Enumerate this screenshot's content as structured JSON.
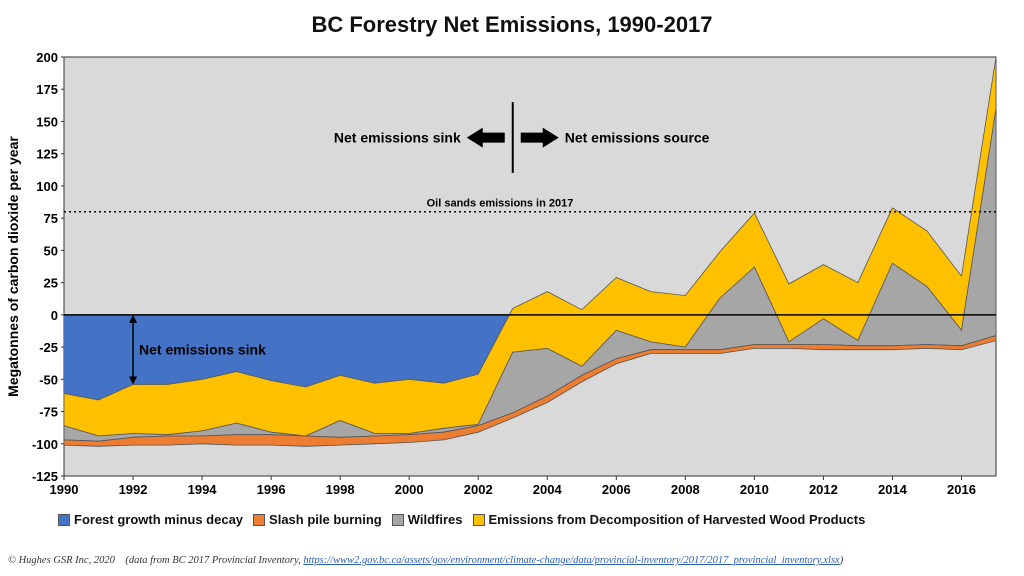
{
  "chart_data": {
    "type": "area",
    "title": "BC Forestry Net Emissions, 1990-2017",
    "ylabel": "Megatonnes of carbon dioxide per year",
    "xlabel": "",
    "x": [
      1990,
      1991,
      1992,
      1993,
      1994,
      1995,
      1996,
      1997,
      1998,
      1999,
      2000,
      2001,
      2002,
      2003,
      2004,
      2005,
      2006,
      2007,
      2008,
      2009,
      2010,
      2011,
      2012,
      2013,
      2014,
      2015,
      2016,
      2017
    ],
    "xticks": [
      "1990",
      "1992",
      "1994",
      "1996",
      "1998",
      "2000",
      "2002",
      "2004",
      "2006",
      "2008",
      "2010",
      "2012",
      "2014",
      "2016"
    ],
    "yticks": [
      "200",
      "175",
      "150",
      "125",
      "100",
      "75",
      "50",
      "25",
      "0",
      "-25",
      "-50",
      "-75",
      "-100",
      "-125"
    ],
    "ylim": [
      -125,
      200
    ],
    "xlim": [
      1990,
      2017
    ],
    "legend_position": "bottom",
    "grid": false,
    "plot_background": "#d9d9d9",
    "series": [
      {
        "name": "Forest growth minus decay",
        "color": "#4472c4",
        "role": "net_line",
        "values": [
          -61,
          -66,
          -54,
          -54,
          -50,
          -44,
          -51,
          -56,
          -47,
          -53,
          -50,
          -53,
          -46,
          5,
          18,
          4,
          29,
          18,
          15,
          49,
          79,
          24,
          39,
          25,
          83,
          65,
          30,
          200
        ]
      },
      {
        "name": "Slash pile burning",
        "color": "#ed7d31",
        "bottom": [
          -101,
          -102,
          -101,
          -101,
          -100,
          -101,
          -101,
          -102,
          -101,
          -100,
          -99,
          -97,
          -91,
          -80,
          -68,
          -52,
          -38,
          -30,
          -30,
          -30,
          -26,
          -26,
          -27,
          -27,
          -27,
          -26,
          -27,
          -20
        ],
        "top": [
          -97,
          -98,
          -95,
          -94,
          -94,
          -93,
          -93,
          -94,
          -95,
          -94,
          -93,
          -91,
          -86,
          -76,
          -63,
          -47,
          -34,
          -27,
          -27,
          -27,
          -23,
          -23,
          -23,
          -24,
          -24,
          -23,
          -24,
          -16
        ]
      },
      {
        "name": "Wildfires",
        "color": "#a6a6a6",
        "top": [
          -86,
          -94,
          -92,
          -93,
          -90,
          -84,
          -91,
          -94,
          -82,
          -92,
          -92,
          -88,
          -85,
          -29,
          -26,
          -40,
          -12,
          -21,
          -25,
          13,
          37,
          -21,
          -3,
          -20,
          40,
          22,
          -12,
          160
        ]
      },
      {
        "name": "Emissions from Decomposition of Harvested Wood Products",
        "color": "#ffc000",
        "top": [
          -61,
          -66,
          -54,
          -54,
          -50,
          -44,
          -51,
          -56,
          -47,
          -53,
          -50,
          -53,
          -46,
          5,
          18,
          4,
          29,
          18,
          15,
          49,
          79,
          24,
          39,
          25,
          83,
          65,
          30,
          200
        ]
      }
    ],
    "annotations": {
      "oil_sands": {
        "label": "Oil sands emissions in 2017",
        "y": 80
      },
      "sink_arrow_label": "Net emissions sink",
      "source_arrow_label": "Net emissions source",
      "sink_bracket_label": "Net emissions sink",
      "divider_x": 2003.0,
      "sink_bracket_x": 1992,
      "sink_bracket_range": [
        0,
        -54
      ]
    }
  },
  "legend": [
    {
      "label": "Forest growth minus decay",
      "color": "#4472c4"
    },
    {
      "label": "Slash pile burning",
      "color": "#ed7d31"
    },
    {
      "label": "Wildfires",
      "color": "#a6a6a6"
    },
    {
      "label": "Emissions from Decomposition of Harvested Wood Products",
      "color": "#ffc000"
    }
  ],
  "footer": {
    "credit": "© Hughes GSR Inc, 2020",
    "source_prefix": "(data from BC 2017 Provincial Inventory,",
    "source_url": "https://www2.gov.bc.ca/assets/gov/environment/climate-change/data/provincial-inventory/2017/2017_provincial_inventory.xlsx",
    "source_suffix": ")"
  }
}
